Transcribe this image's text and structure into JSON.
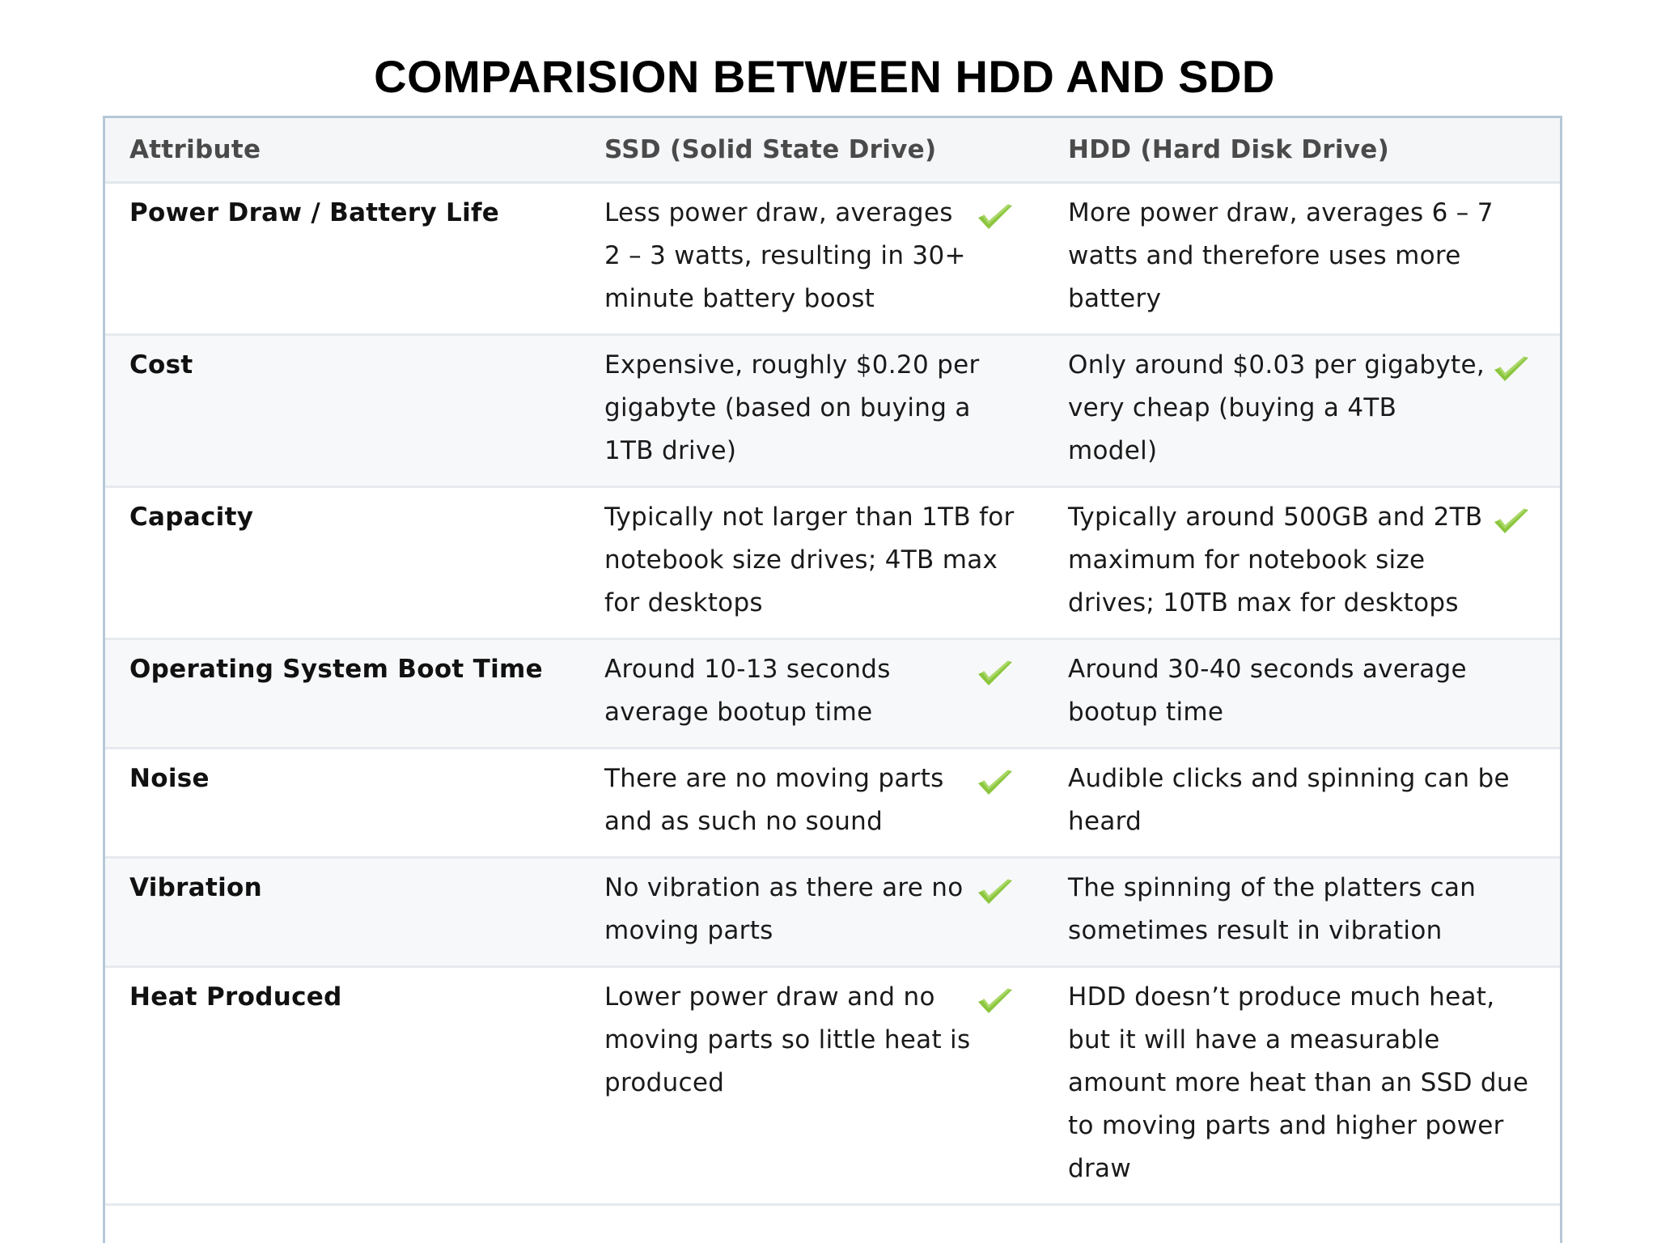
{
  "title": "COMPARISION BETWEEN HDD AND SDD",
  "table": {
    "headers": [
      "Attribute",
      "SSD (Solid State Drive)",
      "HDD (Hard Disk Drive)"
    ],
    "rows": [
      {
        "attribute": "Power Draw / Battery Life",
        "ssd": "Less power draw, averages 2 – 3 watts, resulting in 30+ minute battery boost",
        "hdd": "More power draw, averages 6 – 7 watts and therefore uses more battery",
        "winner": "ssd"
      },
      {
        "attribute": "Cost",
        "ssd": "Expensive, roughly $0.20 per gigabyte (based on buying a 1TB drive)",
        "hdd": "Only around $0.03 per gigabyte, very cheap (buying a 4TB model)",
        "winner": "hdd"
      },
      {
        "attribute": "Capacity",
        "ssd": "Typically not larger than 1TB for notebook size drives; 4TB max for desktops",
        "hdd": "Typically around 500GB and 2TB maximum for notebook size drives; 10TB max for desktops",
        "winner": "hdd"
      },
      {
        "attribute": "Operating System Boot Time",
        "ssd": "Around 10-13 seconds average bootup time",
        "hdd": "Around 30-40 seconds average bootup time",
        "winner": "ssd"
      },
      {
        "attribute": "Noise",
        "ssd": "There are no moving parts and as such no sound",
        "hdd": "Audible clicks and spinning can be heard",
        "winner": "ssd"
      },
      {
        "attribute": "Vibration",
        "ssd": "No vibration as there are no moving parts",
        "hdd": "The spinning of the platters can sometimes result in vibration",
        "winner": "ssd"
      },
      {
        "attribute": "Heat Produced",
        "ssd": "Lower power draw and no moving parts so little heat is produced",
        "hdd": "HDD doesn’t produce much heat, but it will have a measurable amount more heat than an SSD due to moving parts and higher power draw",
        "winner": "ssd"
      }
    ]
  },
  "icons": {
    "winner_mark": "checkmark-icon"
  },
  "colors": {
    "check_green": "#8cc63f",
    "header_text": "#4a4a4a",
    "border": "#b7c7d6"
  }
}
